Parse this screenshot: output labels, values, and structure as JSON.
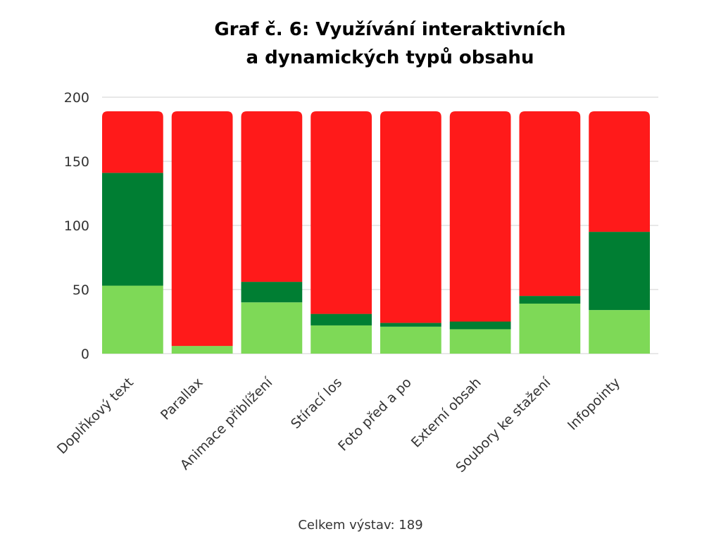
{
  "chart_data": {
    "type": "bar",
    "stacked": true,
    "title": "Graf č. 6: Využívání interaktivních\na dynamických typů obsahu",
    "xlabel": "",
    "ylabel": "",
    "ylim": [
      0,
      200
    ],
    "yticks": [
      0,
      50,
      100,
      150,
      200
    ],
    "grid": true,
    "legend": "none",
    "categories": [
      "Doplňkový text",
      "Parallax",
      "Animace přiblížení",
      "Stírací los",
      "Foto před a po",
      "Externí obsah",
      "Soubory ke stažení",
      "Infopointy"
    ],
    "series": [
      {
        "color": "#7ed957",
        "values": [
          53,
          6,
          40,
          22,
          21,
          19,
          39,
          34
        ]
      },
      {
        "color": "#007e33",
        "values": [
          88,
          0,
          16,
          9,
          3,
          6,
          6,
          61
        ]
      },
      {
        "color": "#ff1a1a",
        "values": [
          48,
          183,
          133,
          158,
          165,
          164,
          144,
          94
        ]
      }
    ]
  },
  "footnote": "Celkem výstav: 189"
}
